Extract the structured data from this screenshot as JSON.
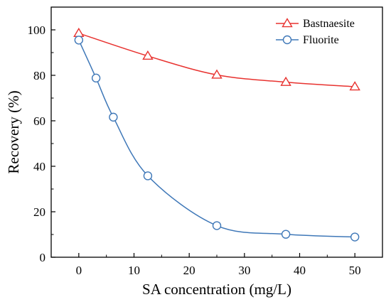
{
  "chart_data": {
    "type": "line",
    "xlabel": "SA concentration (mg/L)",
    "ylabel": "Recovery (%)",
    "xlim": [
      -5,
      55
    ],
    "ylim": [
      0,
      110
    ],
    "xticks": [
      0,
      10,
      20,
      30,
      40,
      50
    ],
    "yticks": [
      0,
      20,
      40,
      60,
      80,
      100
    ],
    "grid": false,
    "legend_position": "top-right",
    "series": [
      {
        "name": "Bastnaesite",
        "color": "#e8322f",
        "marker": "triangle-open",
        "x": [
          0,
          12.5,
          25,
          37.5,
          50
        ],
        "y": [
          98.5,
          88.5,
          80.2,
          77.0,
          75.0
        ]
      },
      {
        "name": "Fluorite",
        "color": "#3f78b8",
        "marker": "circle-open",
        "x": [
          0,
          3.125,
          6.25,
          12.5,
          25,
          37.5,
          50
        ],
        "y": [
          95.5,
          78.8,
          61.6,
          35.8,
          13.9,
          10.1,
          8.9
        ]
      }
    ]
  }
}
